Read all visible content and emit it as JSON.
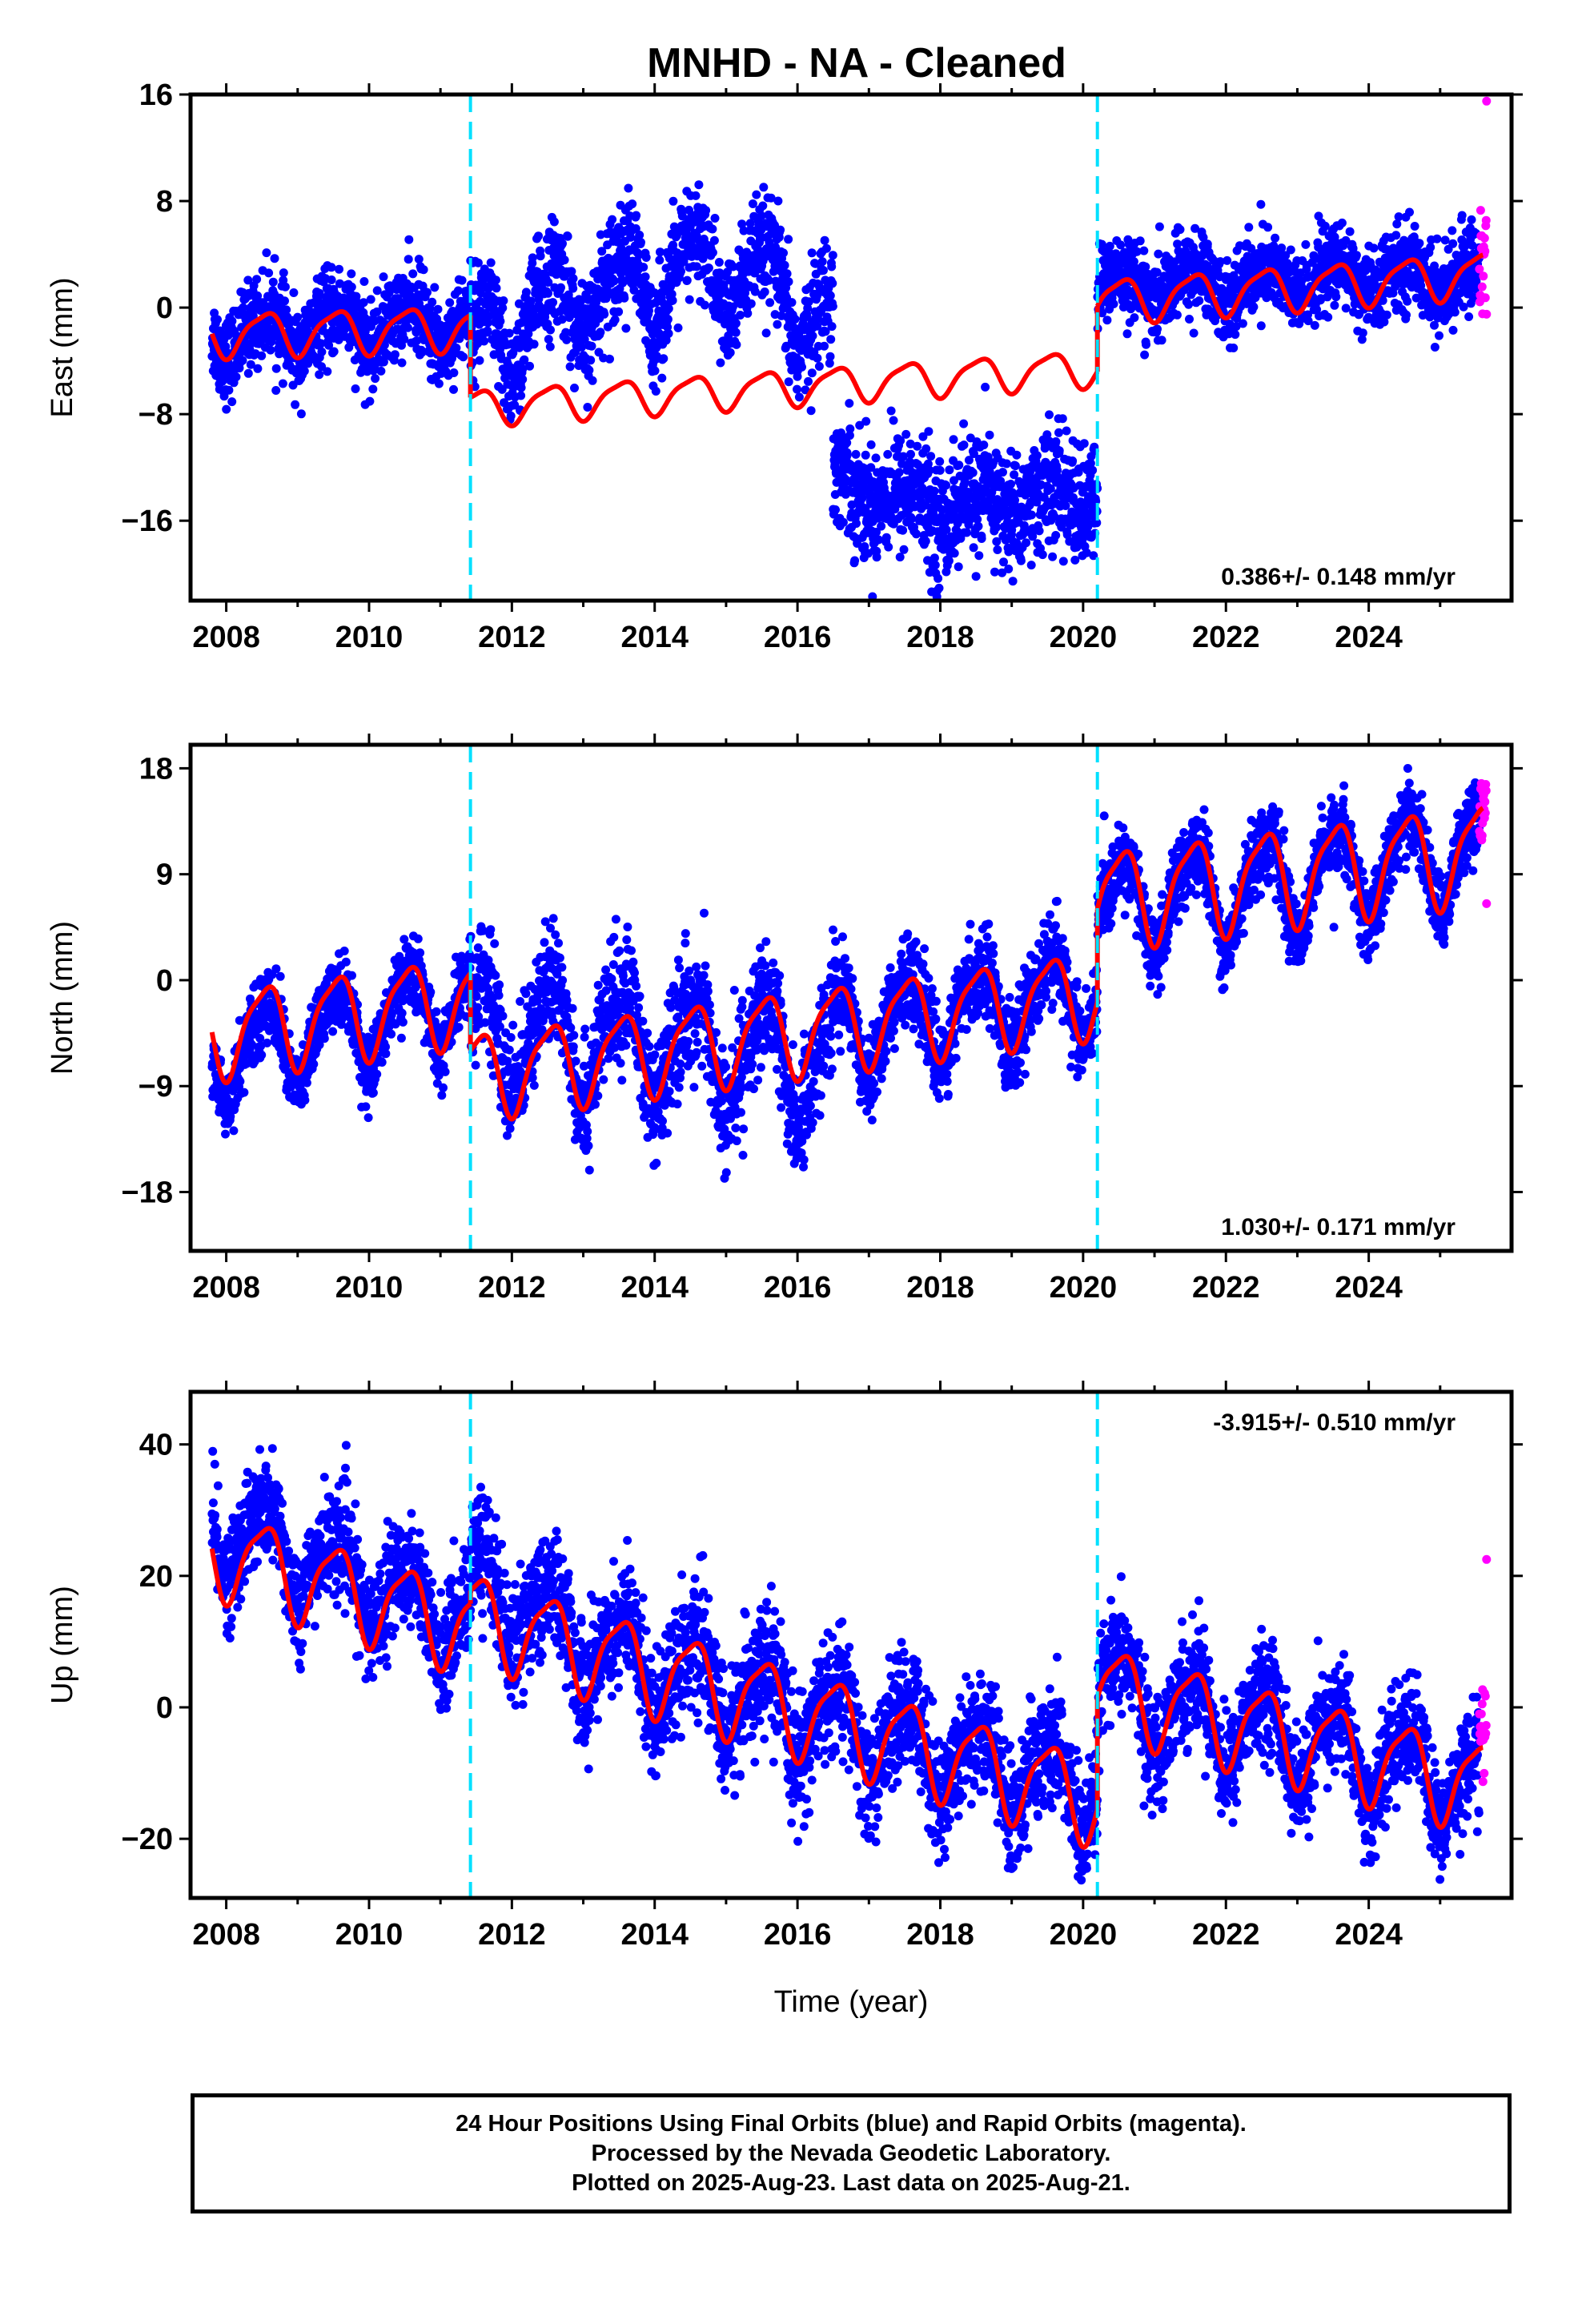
{
  "chart_data": {
    "type": "scatter",
    "title": "MNHD  - NA - Cleaned",
    "xlabel": "Time (year)",
    "x_ticks": [
      "2008",
      "2010",
      "2012",
      "2014",
      "2016",
      "2018",
      "2020",
      "2022",
      "2024"
    ],
    "xlim": [
      2007.5,
      2026.0
    ],
    "breaks": [
      2011.42,
      2020.2
    ],
    "colors": {
      "final_orbits": "#0000ff",
      "rapid_orbits": "#ff00ff",
      "model_fit": "#ff0000",
      "breaks": "#00e0ff"
    },
    "panels": [
      {
        "id": "east",
        "ylabel": "East (mm)",
        "ylim": [
          -22,
          16
        ],
        "y_ticks": [
          16,
          8,
          0,
          -8,
          -16
        ],
        "rate_text": "0.386+/- 0.148 mm/yr",
        "rate_position": "bottom-right",
        "series": [
          {
            "name": "Final Orbits (blue)",
            "segments": [
              {
                "start": 2007.8,
                "end": 2011.42,
                "trend": [
                  [
                    2007.8,
                    -2
                  ],
                  [
                    2011.4,
                    -1
                  ]
                ],
                "amp": 1.5,
                "noise": 1.6
              },
              {
                "start": 2011.42,
                "end": 2016.5,
                "trend": [
                  [
                    2011.42,
                    -3
                  ],
                  [
                    2013.0,
                    1
                  ],
                  [
                    2015.0,
                    3
                  ],
                  [
                    2016.5,
                    -1
                  ]
                ],
                "amp": 3.0,
                "noise": 2.0
              },
              {
                "start": 2016.5,
                "end": 2020.2,
                "trend": [
                  [
                    2016.5,
                    -13
                  ],
                  [
                    2018.0,
                    -15
                  ],
                  [
                    2020.2,
                    -14
                  ]
                ],
                "amp": 1.0,
                "noise": 2.2
              },
              {
                "start": 2020.2,
                "end": 2025.55,
                "trend": [
                  [
                    2020.2,
                    1.5
                  ],
                  [
                    2025.55,
                    2.5
                  ]
                ],
                "amp": 1.2,
                "noise": 1.5
              }
            ]
          },
          {
            "name": "Rapid Orbits (magenta)",
            "start": 2025.55,
            "end": 2025.65,
            "level": 4,
            "spread": 3.5,
            "outliers": [
              15.5,
              -0.5
            ]
          },
          {
            "name": "Model fit",
            "segments": [
              {
                "start": 2007.8,
                "end": 2011.42,
                "base": [
                  [
                    2007.8,
                    -2
                  ],
                  [
                    2011.42,
                    -1.5
                  ]
                ],
                "amp": 1.6
              },
              {
                "start": 2011.42,
                "end": 2020.2,
                "base": [
                  [
                    2011.42,
                    -7.5
                  ],
                  [
                    2020.2,
                    -4.5
                  ]
                ],
                "amp": 1.3
              },
              {
                "start": 2020.2,
                "end": 2025.6,
                "base": [
                  [
                    2020.2,
                    0.5
                  ],
                  [
                    2025.6,
                    2.5
                  ]
                ],
                "amp": 1.6
              }
            ]
          }
        ]
      },
      {
        "id": "north",
        "ylabel": "North (mm)",
        "ylim": [
          -23,
          20
        ],
        "y_ticks": [
          18,
          9,
          0,
          -9,
          -18
        ],
        "rate_text": "1.030+/- 0.171 mm/yr",
        "rate_position": "bottom-right",
        "series": [
          {
            "name": "Final Orbits (blue)",
            "segments": [
              {
                "start": 2007.8,
                "end": 2011.42,
                "trend": [
                  [
                    2007.8,
                    -6.5
                  ],
                  [
                    2011.4,
                    -1.5
                  ]
                ],
                "amp": 3.5,
                "noise": 1.5
              },
              {
                "start": 2011.42,
                "end": 2016.5,
                "trend": [
                  [
                    2011.42,
                    -4
                  ],
                  [
                    2016.5,
                    -7
                  ]
                ],
                "amp": 4.5,
                "noise": 2.5
              },
              {
                "start": 2016.5,
                "end": 2020.2,
                "trend": [
                  [
                    2016.5,
                    -4
                  ],
                  [
                    2020.2,
                    -1
                  ]
                ],
                "amp": 3.5,
                "noise": 1.8
              },
              {
                "start": 2020.2,
                "end": 2025.55,
                "trend": [
                  [
                    2020.2,
                    6
                  ],
                  [
                    2025.55,
                    11
                  ]
                ],
                "amp": 4.0,
                "noise": 1.6
              }
            ]
          },
          {
            "name": "Rapid Orbits (magenta)",
            "start": 2025.55,
            "end": 2025.65,
            "level": 14,
            "spread": 3.5,
            "outliers": [
              6.5
            ]
          },
          {
            "name": "Model fit",
            "segments": [
              {
                "start": 2007.8,
                "end": 2011.42,
                "base": [
                  [
                    2007.8,
                    -4.5
                  ],
                  [
                    2011.42,
                    -1.5
                  ]
                ],
                "amp": 3.6
              },
              {
                "start": 2011.42,
                "end": 2020.2,
                "base": [
                  [
                    2011.42,
                    -8
                  ],
                  [
                    2020.2,
                    -1
                  ]
                ],
                "amp": 3.5
              },
              {
                "start": 2020.2,
                "end": 2025.6,
                "base": [
                  [
                    2020.2,
                    7
                  ],
                  [
                    2025.6,
                    11
                  ]
                ],
                "amp": 4.0
              }
            ]
          }
        ]
      },
      {
        "id": "up",
        "ylabel": "Up (mm)",
        "ylim": [
          -29,
          48
        ],
        "y_ticks": [
          40,
          20,
          0,
          -20
        ],
        "rate_text": "-3.915+/- 0.510 mm/yr",
        "rate_position": "top-right",
        "series": [
          {
            "name": "Final Orbits (blue)",
            "segments": [
              {
                "start": 2007.8,
                "end": 2011.42,
                "trend": [
                  [
                    2007.8,
                    28
                  ],
                  [
                    2011.4,
                    13
                  ]
                ],
                "amp": 5.5,
                "noise": 4.0
              },
              {
                "start": 2011.42,
                "end": 2020.2,
                "trend": [
                  [
                    2011.42,
                    20
                  ],
                  [
                    2013.0,
                    10
                  ],
                  [
                    2016.0,
                    -1
                  ],
                  [
                    2020.2,
                    -13
                  ]
                ],
                "amp": 6.0,
                "noise": 4.5
              },
              {
                "start": 2020.2,
                "end": 2025.55,
                "trend": [
                  [
                    2020.2,
                    3
                  ],
                  [
                    2025.55,
                    -12
                  ]
                ],
                "amp": 6.5,
                "noise": 4.0
              }
            ]
          },
          {
            "name": "Rapid Orbits (magenta)",
            "start": 2025.55,
            "end": 2025.65,
            "level": -2,
            "spread": 6,
            "outliers": [
              22.5
            ]
          },
          {
            "name": "Model fit",
            "segments": [
              {
                "start": 2007.8,
                "end": 2011.42,
                "base": [
                  [
                    2007.8,
                    24
                  ],
                  [
                    2011.42,
                    12
                  ]
                ],
                "amp": 6.5
              },
              {
                "start": 2011.42,
                "end": 2020.2,
                "base": [
                  [
                    2011.42,
                    14
                  ],
                  [
                    2020.2,
                    -14
                  ]
                ],
                "amp": 6.5
              },
              {
                "start": 2020.2,
                "end": 2025.6,
                "base": [
                  [
                    2020.2,
                    3
                  ],
                  [
                    2025.6,
                    -12
                  ]
                ],
                "amp": 6.5
              }
            ]
          }
        ]
      }
    ]
  },
  "footer": {
    "line1": "24 Hour Positions Using Final Orbits (blue) and Rapid Orbits (magenta).",
    "line2": "Processed by the Nevada Geodetic Laboratory.",
    "line3": "Plotted on 2025-Aug-23. Last data on 2025-Aug-21."
  }
}
